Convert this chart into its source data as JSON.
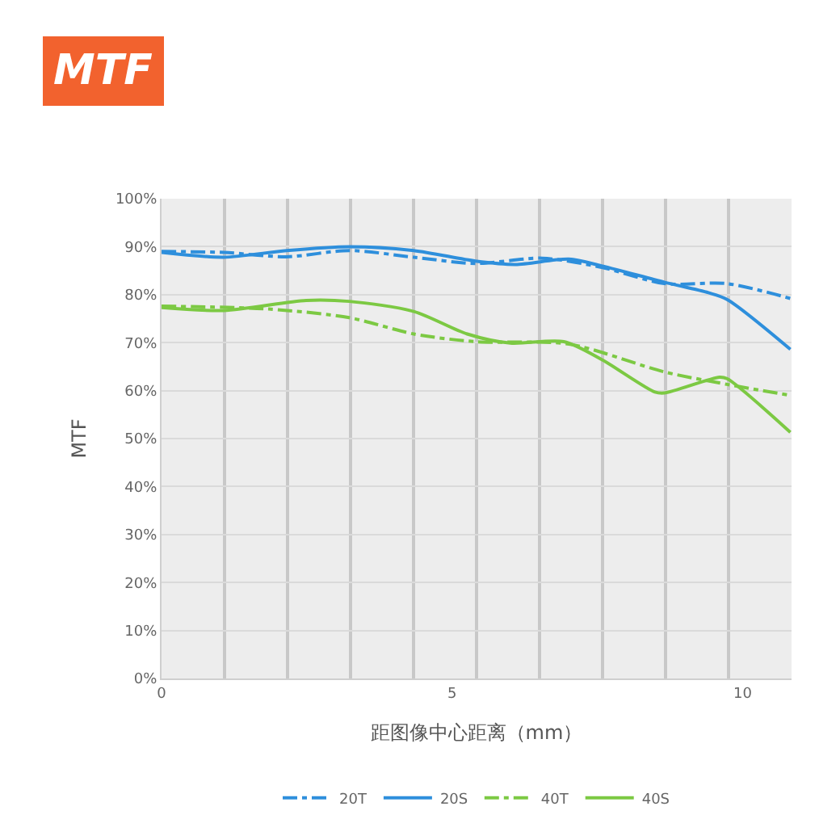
{
  "chart_data": {
    "type": "line",
    "title": "MTF",
    "xlabel": "距图像中心距离（mm）",
    "ylabel": "MTF",
    "xlim": [
      0,
      10.84
    ],
    "xticks": [
      0,
      5,
      10
    ],
    "ylim": [
      0,
      100
    ],
    "yticks": [
      {
        "value": 0,
        "label": "0%"
      },
      {
        "value": 10,
        "label": "10%"
      },
      {
        "value": 20,
        "label": "20%"
      },
      {
        "value": 30,
        "label": "30%"
      },
      {
        "value": 40,
        "label": "40%"
      },
      {
        "value": 50,
        "label": "50%"
      },
      {
        "value": 60,
        "label": "60%"
      },
      {
        "value": 70,
        "label": "70%"
      },
      {
        "value": 80,
        "label": "80%"
      },
      {
        "value": 90,
        "label": "90%"
      },
      {
        "value": 100,
        "label": "100%"
      }
    ],
    "grid": true,
    "legend": "bottom",
    "marker": "none",
    "series": [
      {
        "name": "20T",
        "color": "#2e8fdc",
        "line_style": "dashdot",
        "x": [
          0,
          1.07,
          2.15,
          3.23,
          4.34,
          5.4,
          6.55,
          7.57,
          8.65,
          9.73,
          10.82
        ],
        "values": [
          89,
          88.8,
          87.9,
          89.2,
          87.8,
          86.5,
          87.6,
          85.7,
          82.3,
          82.3,
          79.2
        ]
      },
      {
        "name": "20S",
        "color": "#2e8fdc",
        "line_style": "solid",
        "x": [
          0,
          1.07,
          2.15,
          3.23,
          4.34,
          5.4,
          6.09,
          7.01,
          7.57,
          8.65,
          9.41,
          9.73,
          10.82
        ],
        "values": [
          88.8,
          87.8,
          89.2,
          90,
          89.2,
          87,
          86.3,
          87.4,
          86,
          82.6,
          80.4,
          79,
          68.6
        ]
      },
      {
        "name": "40T",
        "color": "#7cc943",
        "line_style": "dashdot",
        "x": [
          0,
          1.845,
          3.23,
          4.34,
          5.4,
          7.01,
          8.65,
          9.73,
          10.82
        ],
        "values": [
          77.6,
          77,
          75.2,
          71.8,
          70.2,
          69.7,
          63.9,
          61.3,
          59
        ]
      },
      {
        "name": "40S",
        "color": "#7cc943",
        "line_style": "solid",
        "x": [
          0,
          1.07,
          2.49,
          3.23,
          4.34,
          5.26,
          6.0,
          6.92,
          7.57,
          8.49,
          8.65,
          9.6,
          9.73,
          10.82
        ],
        "values": [
          77.3,
          76.7,
          78.8,
          78.6,
          76.5,
          71.8,
          69.9,
          70.2,
          66.5,
          59.7,
          59.5,
          62.8,
          62.5,
          51.3
        ]
      }
    ]
  }
}
